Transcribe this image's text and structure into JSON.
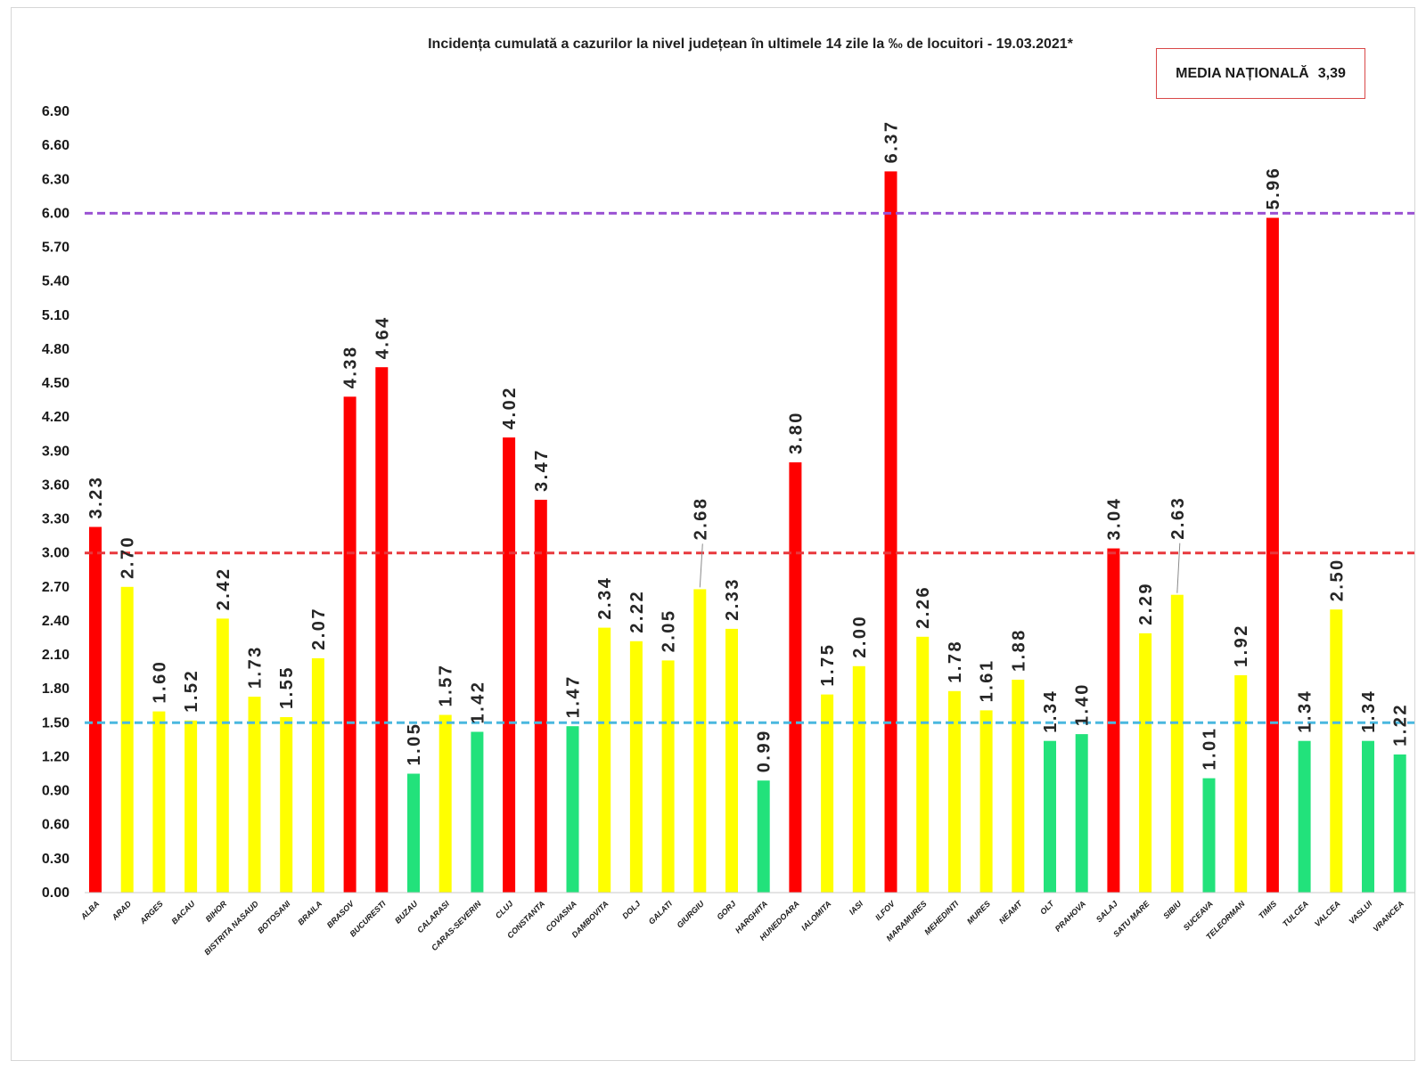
{
  "chart_data": {
    "type": "bar",
    "title": "Incidența cumulată a cazurilor la nivel județean în ultimele 14 zile la ‰ de locuitori - 19.03.2021*",
    "annotation": {
      "label": "MEDIA NAȚIONALĂ",
      "value": "3,39"
    },
    "xlabel": "",
    "ylabel": "",
    "ylim": [
      0,
      6.9
    ],
    "ytick_step": 0.3,
    "grid": false,
    "categories": [
      "ALBA",
      "ARAD",
      "ARGES",
      "BACAU",
      "BIHOR",
      "BISTRITA NASAUD",
      "BOTOSANI",
      "BRAILA",
      "BRASOV",
      "BUCURESTI",
      "BUZAU",
      "CALARASI",
      "CARAS-SEVERIN",
      "CLUJ",
      "CONSTANTA",
      "COVASNA",
      "DAMBOVITA",
      "DOLJ",
      "GALATI",
      "GIURGIU",
      "GORJ",
      "HARGHITA",
      "HUNEDOARA",
      "IALOMITA",
      "IASI",
      "ILFOV",
      "MARAMURES",
      "MEHEDINTI",
      "MURES",
      "NEAMT",
      "OLT",
      "PRAHOVA",
      "SALAJ",
      "SATU MARE",
      "SIBIU",
      "SUCEAVA",
      "TELEORMAN",
      "TIMIS",
      "TULCEA",
      "VALCEA",
      "VASLUI",
      "VRANCEA"
    ],
    "values": [
      3.23,
      2.7,
      1.6,
      1.52,
      2.42,
      1.73,
      1.55,
      2.07,
      4.38,
      4.64,
      1.05,
      1.57,
      1.42,
      4.02,
      3.47,
      1.47,
      2.34,
      2.22,
      2.05,
      2.68,
      2.33,
      0.99,
      3.8,
      1.75,
      2.0,
      6.37,
      2.26,
      1.78,
      1.61,
      1.88,
      1.34,
      1.4,
      3.04,
      2.29,
      2.63,
      1.01,
      1.92,
      5.96,
      1.34,
      2.5,
      1.34,
      1.22
    ],
    "color_thresholds": {
      "low_below": 1.5,
      "high_above": 3.0
    },
    "colors": {
      "high": "#ff0000",
      "medium": "#ffff00",
      "low": "#22e27b"
    },
    "reference_lines": [
      {
        "value": 6.0,
        "color": "#9a52d3"
      },
      {
        "value": 3.0,
        "color": "#e8383d"
      },
      {
        "value": 1.5,
        "color": "#4ab8df"
      }
    ]
  }
}
